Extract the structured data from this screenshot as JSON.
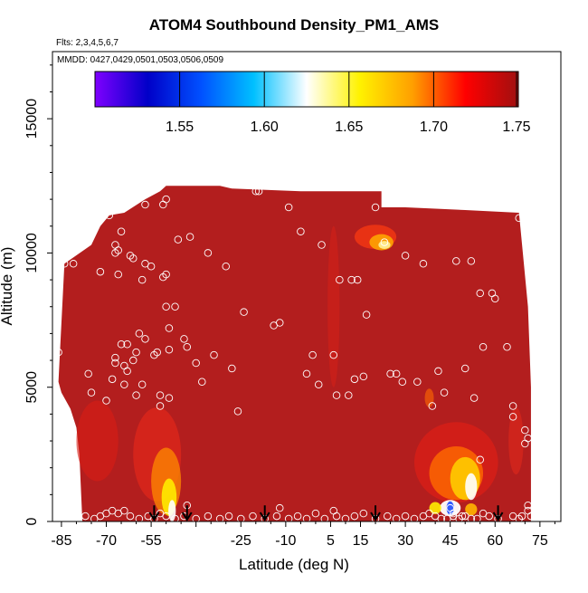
{
  "chart_data": {
    "type": "heatmap",
    "title": "ATOM4 Southbound Density_PM1_AMS",
    "subtitle_flights": "Flts: 2,3,4,5,6,7",
    "subtitle_dates": "MMDD: 0427,0429,0501,0503,0506,0509",
    "xlabel": "Latitude (deg N)",
    "ylabel": "Altitude (m)",
    "xlim": [
      -88,
      82
    ],
    "ylim": [
      0,
      17500
    ],
    "x_ticks": [
      -85,
      -70,
      -55,
      -40,
      -25,
      -10,
      5,
      15,
      30,
      45,
      60,
      75
    ],
    "x_tick_labels": [
      "-85",
      "-70",
      "-55",
      "",
      "-25",
      "-10",
      "5",
      "15",
      "30",
      "45",
      "60",
      "75"
    ],
    "y_ticks": [
      0,
      5000,
      10000,
      15000
    ],
    "y_tick_labels": [
      "0",
      "5000",
      "10000",
      "15000"
    ],
    "colorbar": {
      "min": 1.5,
      "max": 1.75,
      "ticks": [
        1.55,
        1.6,
        1.65,
        1.7,
        1.75
      ],
      "tick_labels": [
        "1.55",
        "1.60",
        "1.65",
        "1.70",
        "1.75"
      ],
      "colors": [
        "#7f00ff",
        "#0000c8",
        "#0050ff",
        "#00c0ff",
        "#ffffff",
        "#fff200",
        "#ff9f00",
        "#ff0000",
        "#a01010"
      ]
    },
    "background_value": 1.73,
    "background_color": "#b31e1e",
    "arrow_latitudes": [
      -54,
      -43,
      -17,
      20,
      61
    ],
    "observation_points": [
      [
        -86,
        6300
      ],
      [
        -84,
        9600
      ],
      [
        -81,
        9600
      ],
      [
        -76,
        5500
      ],
      [
        -75,
        4800
      ],
      [
        -72,
        9300
      ],
      [
        -70,
        4500
      ],
      [
        -69,
        11400
      ],
      [
        -68,
        5300
      ],
      [
        -67,
        6100
      ],
      [
        -67,
        5900
      ],
      [
        -67,
        10300
      ],
      [
        -67,
        10000
      ],
      [
        -66,
        10100
      ],
      [
        -66,
        9200
      ],
      [
        -65,
        6600
      ],
      [
        -65,
        10800
      ],
      [
        -64,
        5800
      ],
      [
        -64,
        5100
      ],
      [
        -63,
        6600
      ],
      [
        -63,
        5600
      ],
      [
        -62,
        9900
      ],
      [
        -61,
        9800
      ],
      [
        -61,
        6000
      ],
      [
        -60,
        6300
      ],
      [
        -60,
        4700
      ],
      [
        -59,
        7000
      ],
      [
        -58,
        5100
      ],
      [
        -58,
        9000
      ],
      [
        -57,
        6800
      ],
      [
        -57,
        11800
      ],
      [
        -57,
        9600
      ],
      [
        -55,
        9500
      ],
      [
        -54,
        6200
      ],
      [
        -53,
        6300
      ],
      [
        -52,
        4300
      ],
      [
        -52,
        4700
      ],
      [
        -51,
        9100
      ],
      [
        -51,
        11800
      ],
      [
        -50,
        9200
      ],
      [
        -50,
        8000
      ],
      [
        -50,
        12000
      ],
      [
        -49,
        4600
      ],
      [
        -49,
        6400
      ],
      [
        -49,
        7200
      ],
      [
        -47,
        8000
      ],
      [
        -46,
        10500
      ],
      [
        -44,
        6800
      ],
      [
        -43,
        6500
      ],
      [
        -42,
        10600
      ],
      [
        -40,
        5900
      ],
      [
        -38,
        5200
      ],
      [
        -36,
        10000
      ],
      [
        -34,
        6200
      ],
      [
        -30,
        9500
      ],
      [
        -28,
        5700
      ],
      [
        -26,
        4100
      ],
      [
        -24,
        7800
      ],
      [
        -20,
        12300
      ],
      [
        -19,
        12300
      ],
      [
        -14,
        7300
      ],
      [
        -12,
        7400
      ],
      [
        -9,
        11700
      ],
      [
        -5,
        10800
      ],
      [
        -3,
        5500
      ],
      [
        -1,
        6200
      ],
      [
        1,
        5100
      ],
      [
        2,
        10300
      ],
      [
        6,
        6200
      ],
      [
        7,
        4700
      ],
      [
        8,
        9000
      ],
      [
        11,
        4700
      ],
      [
        12,
        9000
      ],
      [
        13,
        5300
      ],
      [
        14,
        9000
      ],
      [
        16,
        5400
      ],
      [
        17,
        7700
      ],
      [
        20,
        11700
      ],
      [
        23,
        10400
      ],
      [
        25,
        5500
      ],
      [
        27,
        5500
      ],
      [
        29,
        5200
      ],
      [
        30,
        9900
      ],
      [
        34,
        5200
      ],
      [
        36,
        9600
      ],
      [
        39,
        4300
      ],
      [
        41,
        5600
      ],
      [
        43,
        4800
      ],
      [
        47,
        9700
      ],
      [
        50,
        5700
      ],
      [
        52,
        9700
      ],
      [
        53,
        4600
      ],
      [
        55,
        8500
      ],
      [
        56,
        6500
      ],
      [
        59,
        8500
      ],
      [
        60,
        8300
      ],
      [
        64,
        6500
      ],
      [
        66,
        4300
      ],
      [
        66,
        3900
      ],
      [
        68,
        11300
      ],
      [
        70,
        3400
      ],
      [
        70,
        2900
      ],
      [
        71,
        3100
      ],
      [
        71,
        600
      ],
      [
        71,
        400
      ],
      [
        72,
        200
      ],
      [
        69,
        200
      ],
      [
        68,
        100
      ],
      [
        66,
        200
      ],
      [
        61,
        100
      ],
      [
        58,
        200
      ],
      [
        56,
        300
      ],
      [
        54,
        100
      ],
      [
        52,
        100
      ],
      [
        50,
        200
      ],
      [
        48,
        100
      ],
      [
        46,
        200
      ],
      [
        44,
        100
      ],
      [
        42,
        100
      ],
      [
        40,
        200
      ],
      [
        38,
        300
      ],
      [
        36,
        200
      ],
      [
        33,
        100
      ],
      [
        30,
        200
      ],
      [
        27,
        100
      ],
      [
        24,
        200
      ],
      [
        20,
        100
      ],
      [
        16,
        300
      ],
      [
        13,
        200
      ],
      [
        10,
        100
      ],
      [
        7,
        200
      ],
      [
        3,
        100
      ],
      [
        0,
        300
      ],
      [
        -3,
        100
      ],
      [
        -6,
        200
      ],
      [
        -9,
        100
      ],
      [
        -13,
        200
      ],
      [
        -17,
        100
      ],
      [
        -21,
        200
      ],
      [
        -25,
        100
      ],
      [
        -29,
        200
      ],
      [
        -32,
        100
      ],
      [
        -36,
        200
      ],
      [
        -40,
        100
      ],
      [
        -44,
        200
      ],
      [
        -47,
        100
      ],
      [
        -50,
        200
      ],
      [
        -52,
        300
      ],
      [
        -54,
        100
      ],
      [
        -56,
        200
      ],
      [
        -59,
        100
      ],
      [
        -62,
        200
      ],
      [
        -64,
        400
      ],
      [
        -66,
        300
      ],
      [
        -68,
        400
      ],
      [
        -70,
        300
      ],
      [
        -72,
        200
      ],
      [
        -74,
        100
      ],
      [
        -77,
        200
      ],
      [
        -43,
        600
      ],
      [
        -12,
        500
      ],
      [
        6,
        400
      ],
      [
        45,
        500
      ],
      [
        46,
        300
      ],
      [
        49,
        200
      ],
      [
        55,
        2300
      ]
    ]
  }
}
